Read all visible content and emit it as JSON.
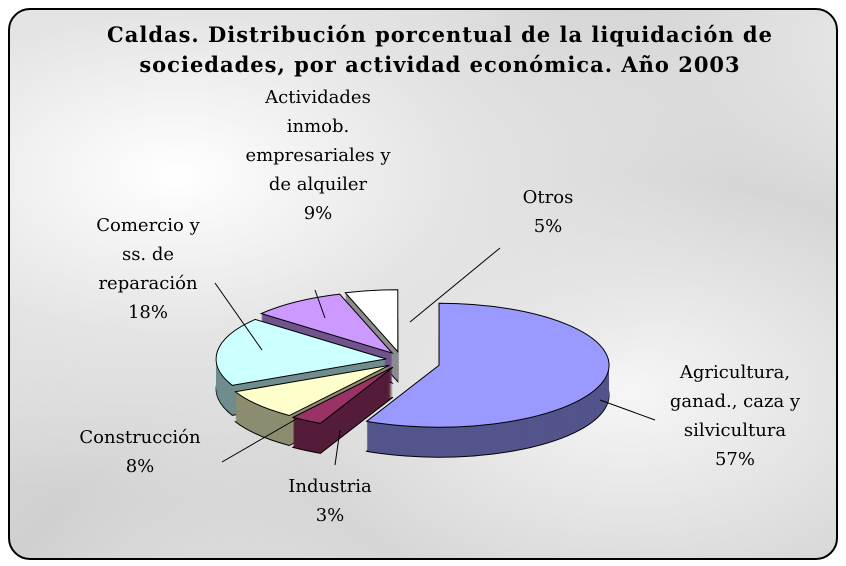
{
  "chart_data": {
    "type": "pie",
    "title": "Caldas. Distribución porcentual de la liquidación de sociedades, por actividad económica. Año 2003",
    "categories": [
      "Agricultura, ganad., caza y silvicultura",
      "Industria",
      "Construcción",
      "Comercio y ss. de reparación",
      "Actividades inmob. empresariales y de alquiler",
      "Otros"
    ],
    "values": [
      57,
      3,
      8,
      18,
      9,
      5
    ],
    "value_labels": [
      "57%",
      "3%",
      "8%",
      "18%",
      "9%",
      "5%"
    ],
    "colors": [
      "#9999ff",
      "#993366",
      "#ffffcc",
      "#ccffff",
      "#cc99ff",
      "#ffffff"
    ]
  }
}
